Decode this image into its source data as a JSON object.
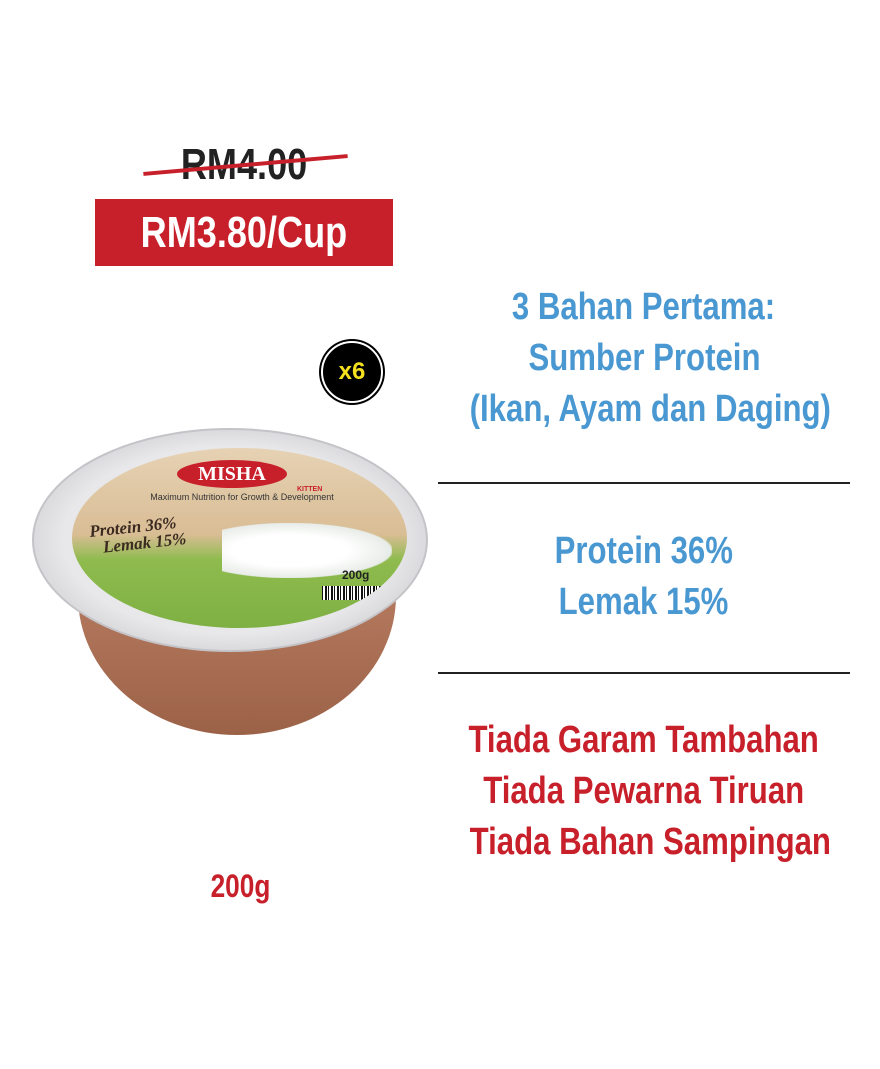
{
  "pricing": {
    "original_price": "RM4.00",
    "sale_price": "RM3.80/Cup",
    "quantity_badge": "x6"
  },
  "product": {
    "brand": "MISHA",
    "tagline": "Maximum Nutrition for Growth & Development",
    "label_protein": "Protein 36%",
    "label_fat": "Lemak 15%",
    "label_variant": "KITTEN",
    "label_weight": "200g",
    "weight": "200g",
    "colors": {
      "bowl": "#a86b50",
      "label_green": "#7eb043",
      "label_beige": "#e0c8a4"
    }
  },
  "features": {
    "block1": [
      "3 Bahan Pertama:",
      "Sumber Protein",
      "(Ikan, Ayam dan Daging)"
    ],
    "block2": [
      "Protein 36%",
      "Lemak 15%"
    ],
    "block3": [
      "Tiada Garam Tambahan",
      "Tiada Pewarna Tiruan",
      "Tiada Bahan Sampingan"
    ]
  },
  "colors": {
    "accent_red": "#c8202a",
    "accent_blue": "#4a98d2",
    "text_dark": "#222222",
    "badge_yellow": "#f5e020"
  }
}
